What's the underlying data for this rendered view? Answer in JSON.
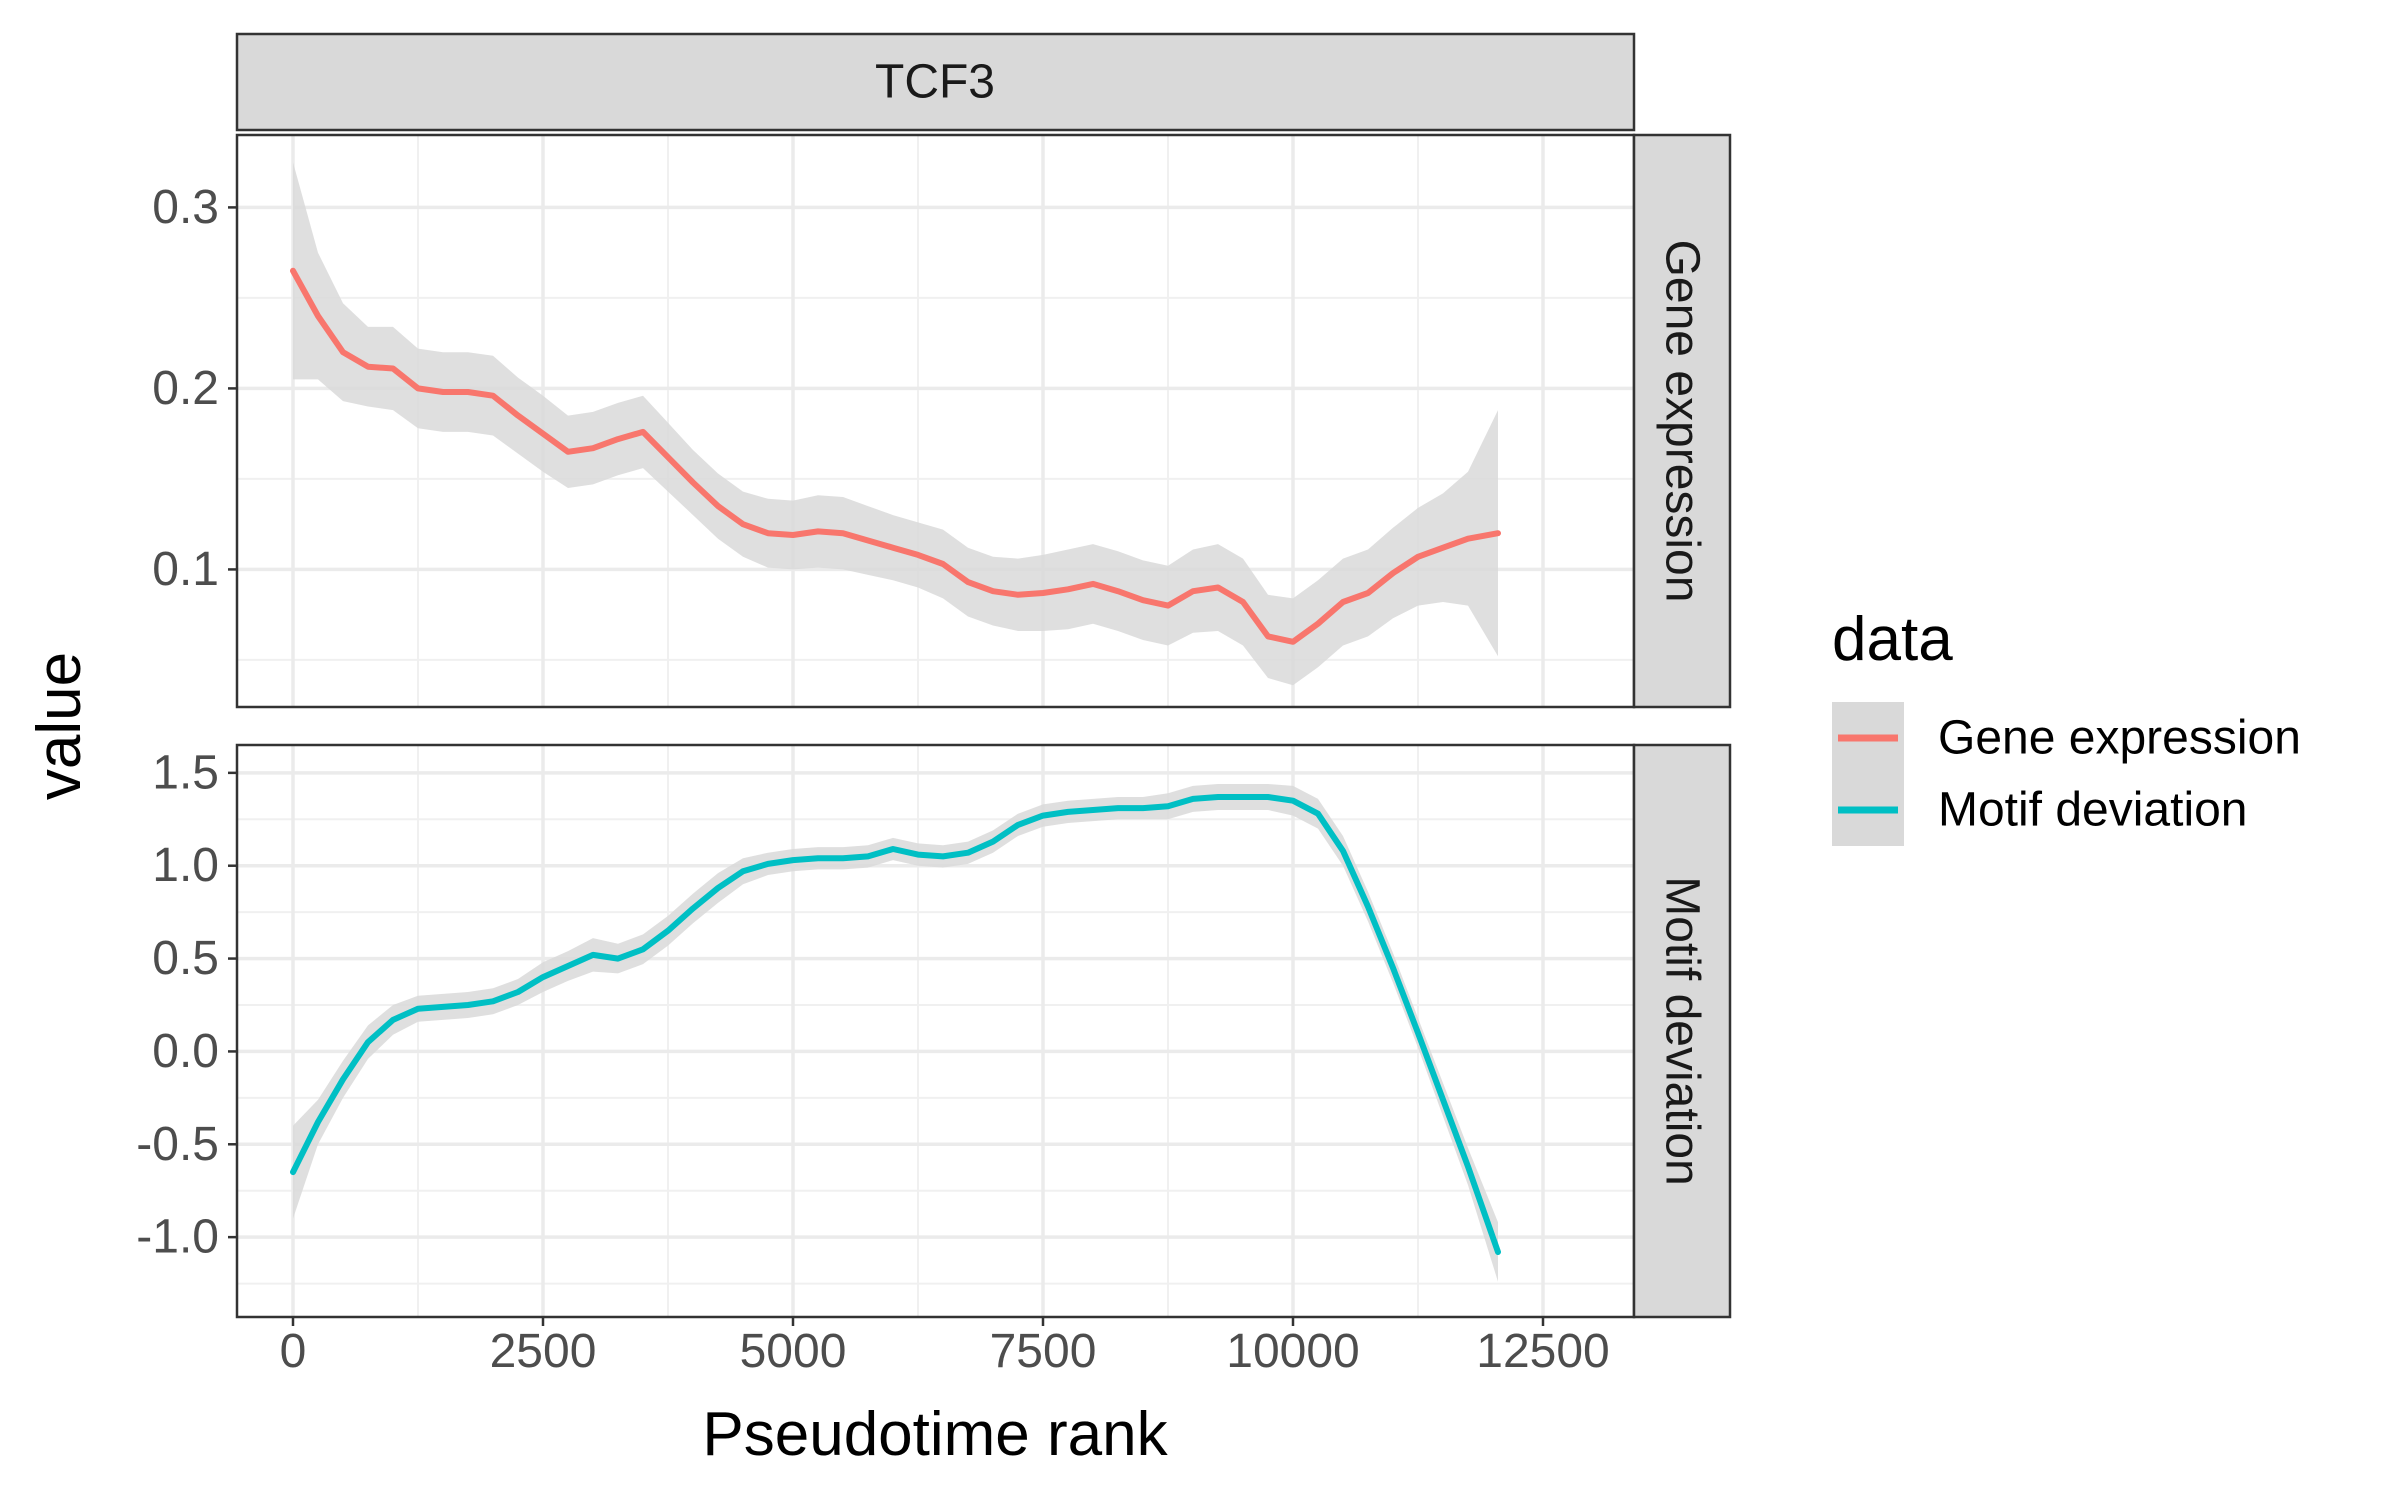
{
  "chart_data": {
    "type": "line",
    "facet_title": "TCF3",
    "xlabel": "Pseudotime rank",
    "ylabel": "value",
    "legend": {
      "title": "data",
      "position": "right",
      "items": [
        "Gene expression",
        "Motif deviation"
      ]
    },
    "grid": true,
    "x_ticks": [
      "0",
      "2500",
      "5000",
      "7500",
      "10000",
      "12500"
    ],
    "xlim": [
      -560,
      13410
    ],
    "colors": {
      "Gene expression": "#F8766D",
      "Motif deviation": "#00BFC4",
      "ribbon": "#d9d9d9"
    },
    "panels": [
      {
        "strip_label": "Gene expression",
        "ylim": [
          0.024,
          0.34
        ],
        "y_ticks": [
          "0.1",
          "0.2",
          "0.3"
        ],
        "series": {
          "name": "Gene expression",
          "x": [
            0,
            250,
            500,
            750,
            1000,
            1250,
            1500,
            1750,
            2000,
            2250,
            2500,
            2750,
            3000,
            3250,
            3500,
            3750,
            4000,
            4250,
            4500,
            4750,
            5000,
            5250,
            5500,
            5750,
            6000,
            6250,
            6500,
            6750,
            7000,
            7250,
            7500,
            7750,
            8000,
            8250,
            8500,
            8750,
            9000,
            9250,
            9500,
            9750,
            10000,
            10250,
            10500,
            10750,
            11000,
            11250,
            11500,
            11750,
            12050
          ],
          "y": [
            0.265,
            0.24,
            0.22,
            0.212,
            0.211,
            0.2,
            0.198,
            0.198,
            0.196,
            0.185,
            0.175,
            0.165,
            0.167,
            0.172,
            0.176,
            0.162,
            0.148,
            0.135,
            0.125,
            0.12,
            0.119,
            0.121,
            0.12,
            0.116,
            0.112,
            0.108,
            0.103,
            0.093,
            0.088,
            0.086,
            0.087,
            0.089,
            0.092,
            0.088,
            0.083,
            0.08,
            0.088,
            0.09,
            0.082,
            0.063,
            0.06,
            0.07,
            0.082,
            0.087,
            0.098,
            0.107,
            0.112,
            0.117,
            0.12
          ],
          "lower": [
            0.205,
            0.205,
            0.193,
            0.19,
            0.188,
            0.178,
            0.176,
            0.176,
            0.174,
            0.164,
            0.154,
            0.145,
            0.147,
            0.152,
            0.156,
            0.143,
            0.13,
            0.117,
            0.107,
            0.101,
            0.1,
            0.101,
            0.1,
            0.097,
            0.094,
            0.09,
            0.084,
            0.074,
            0.069,
            0.066,
            0.066,
            0.067,
            0.07,
            0.066,
            0.061,
            0.058,
            0.065,
            0.066,
            0.058,
            0.04,
            0.036,
            0.046,
            0.058,
            0.063,
            0.073,
            0.08,
            0.082,
            0.08,
            0.052
          ],
          "upper": [
            0.325,
            0.275,
            0.247,
            0.234,
            0.234,
            0.222,
            0.22,
            0.22,
            0.218,
            0.206,
            0.196,
            0.185,
            0.187,
            0.192,
            0.196,
            0.181,
            0.166,
            0.153,
            0.143,
            0.139,
            0.138,
            0.141,
            0.14,
            0.135,
            0.13,
            0.126,
            0.122,
            0.112,
            0.107,
            0.106,
            0.108,
            0.111,
            0.114,
            0.11,
            0.105,
            0.102,
            0.111,
            0.114,
            0.106,
            0.086,
            0.084,
            0.094,
            0.106,
            0.111,
            0.123,
            0.134,
            0.142,
            0.154,
            0.188
          ]
        }
      },
      {
        "strip_label": "Motif deviation",
        "ylim": [
          -1.43,
          1.65
        ],
        "y_ticks": [
          "-1.0",
          "-0.5",
          "0.0",
          "0.5",
          "1.0",
          "1.5"
        ],
        "series": {
          "name": "Motif deviation",
          "x": [
            0,
            250,
            500,
            750,
            1000,
            1250,
            1500,
            1750,
            2000,
            2250,
            2500,
            2750,
            3000,
            3250,
            3500,
            3750,
            4000,
            4250,
            4500,
            4750,
            5000,
            5250,
            5500,
            5750,
            6000,
            6250,
            6500,
            6750,
            7000,
            7250,
            7500,
            7750,
            8000,
            8250,
            8500,
            8750,
            9000,
            9250,
            9500,
            9750,
            10000,
            10250,
            10500,
            10750,
            11000,
            11250,
            11500,
            11750,
            12050
          ],
          "y": [
            -0.65,
            -0.38,
            -0.15,
            0.05,
            0.17,
            0.23,
            0.24,
            0.25,
            0.27,
            0.32,
            0.4,
            0.46,
            0.52,
            0.5,
            0.55,
            0.65,
            0.77,
            0.88,
            0.97,
            1.01,
            1.03,
            1.04,
            1.04,
            1.05,
            1.09,
            1.06,
            1.05,
            1.07,
            1.13,
            1.22,
            1.27,
            1.29,
            1.3,
            1.31,
            1.31,
            1.32,
            1.36,
            1.37,
            1.37,
            1.37,
            1.35,
            1.28,
            1.08,
            0.78,
            0.45,
            0.1,
            -0.26,
            -0.62,
            -1.08
          ],
          "lower": [
            -0.9,
            -0.5,
            -0.25,
            -0.04,
            0.09,
            0.16,
            0.17,
            0.18,
            0.2,
            0.25,
            0.32,
            0.38,
            0.43,
            0.42,
            0.47,
            0.57,
            0.69,
            0.8,
            0.9,
            0.95,
            0.97,
            0.98,
            0.98,
            0.99,
            1.03,
            1.0,
            0.99,
            1.01,
            1.07,
            1.16,
            1.21,
            1.23,
            1.24,
            1.25,
            1.25,
            1.25,
            1.29,
            1.3,
            1.3,
            1.3,
            1.27,
            1.2,
            1.0,
            0.7,
            0.37,
            0.02,
            -0.35,
            -0.72,
            -1.24
          ],
          "upper": [
            -0.4,
            -0.26,
            -0.05,
            0.14,
            0.25,
            0.3,
            0.31,
            0.32,
            0.34,
            0.39,
            0.48,
            0.54,
            0.61,
            0.58,
            0.63,
            0.73,
            0.85,
            0.96,
            1.04,
            1.07,
            1.09,
            1.1,
            1.1,
            1.11,
            1.15,
            1.12,
            1.11,
            1.13,
            1.19,
            1.28,
            1.33,
            1.35,
            1.36,
            1.37,
            1.37,
            1.39,
            1.43,
            1.44,
            1.44,
            1.44,
            1.43,
            1.36,
            1.16,
            0.86,
            0.53,
            0.18,
            -0.17,
            -0.52,
            -0.92
          ]
        }
      }
    ]
  }
}
